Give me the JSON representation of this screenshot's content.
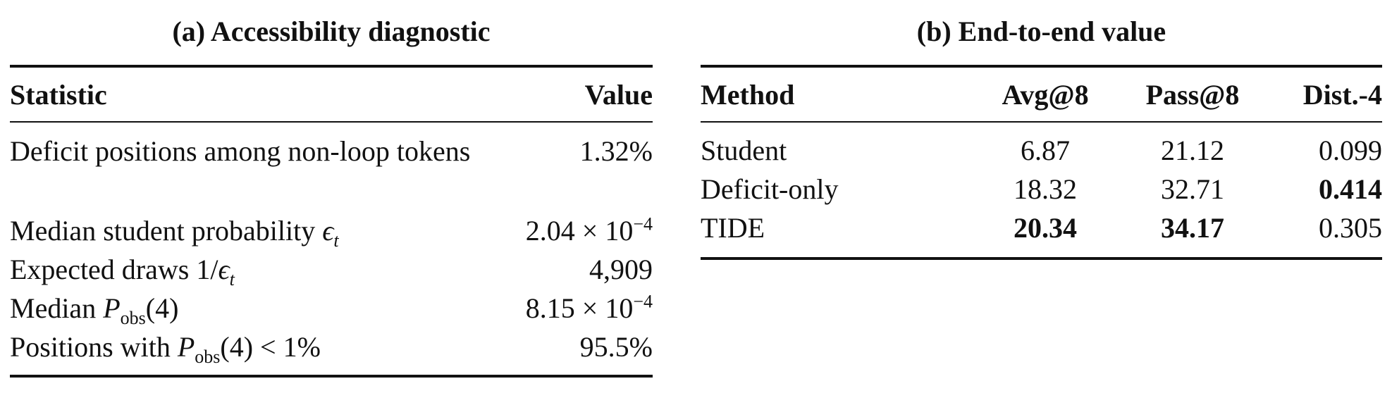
{
  "panel_a": {
    "caption": "(a) Accessibility diagnostic",
    "header": {
      "statistic": "Statistic",
      "value": "Value"
    },
    "rows": [
      {
        "statistic": "Deficit positions among non-loop tokens",
        "value": "1.32%"
      },
      {
        "statistic_prefix": "Median student probability ",
        "eps": "ϵ",
        "eps_sub": "t",
        "value_mant": "2.04 × 10",
        "value_exp": "−4"
      },
      {
        "statistic_prefix": "Expected draws ",
        "frac": "1/",
        "eps": "ϵ",
        "eps_sub": "t",
        "value": "4,909"
      },
      {
        "statistic_prefix": "Median ",
        "P": "P",
        "P_sub": "obs",
        "arg": "(4)",
        "value_mant": "8.15 × 10",
        "value_exp": "−4"
      },
      {
        "statistic_prefix": "Positions with ",
        "P": "P",
        "P_sub": "obs",
        "arg": "(4) < 1%",
        "value": "95.5%"
      }
    ]
  },
  "panel_b": {
    "caption": "(b) End-to-end value",
    "header": {
      "method": "Method",
      "avg": "Avg@8",
      "pass": "Pass@8",
      "dist": "Dist.-4"
    },
    "rows": [
      {
        "method": "Student",
        "avg": "6.87",
        "pass": "21.12",
        "dist": "0.099",
        "bold": []
      },
      {
        "method": "Deficit-only",
        "avg": "18.32",
        "pass": "32.71",
        "dist": "0.414",
        "bold": [
          "dist"
        ]
      },
      {
        "method": "TIDE",
        "avg": "20.34",
        "pass": "34.17",
        "dist": "0.305",
        "bold": [
          "avg",
          "pass"
        ]
      }
    ]
  }
}
